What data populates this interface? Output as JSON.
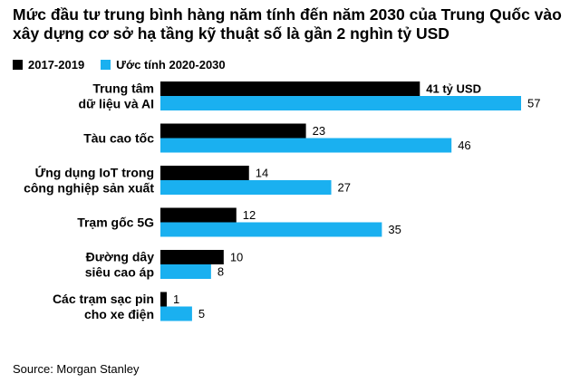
{
  "chart_data": {
    "type": "bar",
    "orientation": "horizontal",
    "title": "Mức đầu tư trung bình hàng năm tính đến năm 2030 của Trung Quốc vào xây dựng cơ sở hạ tầng kỹ thuật số là gần 2 nghìn tỷ USD",
    "categories": [
      [
        "Trung tâm",
        "dữ liệu và AI"
      ],
      [
        "Tàu cao tốc"
      ],
      [
        "Ứng dụng IoT trong",
        "công nghiệp sản xuất"
      ],
      [
        "Trạm gốc 5G"
      ],
      [
        "Đường dây",
        "siêu cao áp"
      ],
      [
        "Các trạm sạc pin",
        "cho xe điện"
      ]
    ],
    "series": [
      {
        "name": "2017-2019",
        "color": "#000000",
        "values": [
          41,
          23,
          14,
          12,
          10,
          1
        ],
        "labels": [
          "41 tỷ USD",
          "23",
          "14",
          "12",
          "10",
          "1"
        ]
      },
      {
        "name": "Ước tính 2020-2030",
        "color": "#1ab0f0",
        "values": [
          57,
          46,
          27,
          35,
          8,
          5
        ],
        "labels": [
          "57",
          "46",
          "27",
          "35",
          "8",
          "5"
        ]
      }
    ],
    "xlim": [
      0,
      60
    ],
    "legend_position": "top-left",
    "grid": false
  },
  "source": "Source: Morgan Stanley"
}
